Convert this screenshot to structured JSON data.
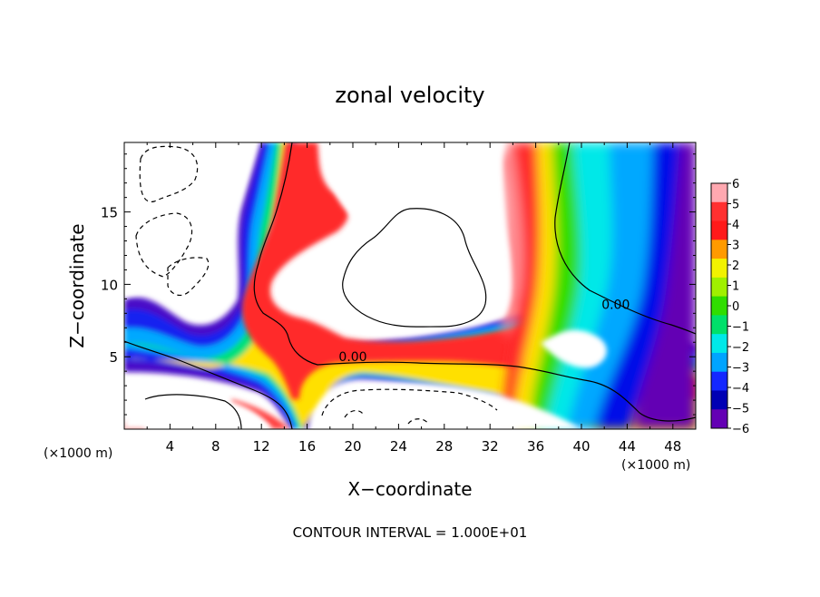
{
  "chart_data": {
    "type": "heatmap",
    "title": "zonal velocity",
    "xlabel": "X−coordinate",
    "ylabel": "Z−coordinate",
    "x_unit_left": "(×1000 m)",
    "x_unit_right": "(×1000 m)",
    "xlim": [
      0,
      50
    ],
    "ylim": [
      0,
      19.8
    ],
    "x_ticks": [
      4,
      8,
      12,
      16,
      20,
      24,
      28,
      32,
      36,
      40,
      44,
      48
    ],
    "y_ticks": [
      5,
      10,
      15
    ],
    "colorbar": {
      "levels": [
        6,
        5,
        4,
        3,
        2,
        1,
        0,
        -1,
        -2,
        -3,
        -4,
        -5,
        -6
      ],
      "colors": [
        "#ffa8b0",
        "#ff3030",
        "#ff1a1a",
        "#ff9a00",
        "#f2f200",
        "#a0f000",
        "#30dd00",
        "#00e06a",
        "#00e8e8",
        "#00a4ff",
        "#1428ff",
        "#0000b4",
        "#6400b4"
      ]
    },
    "contour_labels": [
      {
        "text": "0.00",
        "x": 20,
        "z": 4.7
      },
      {
        "text": "0.00",
        "x": 43,
        "z": 8.3
      }
    ],
    "footer": "CONTOUR INTERVAL = 1.000E+01"
  }
}
